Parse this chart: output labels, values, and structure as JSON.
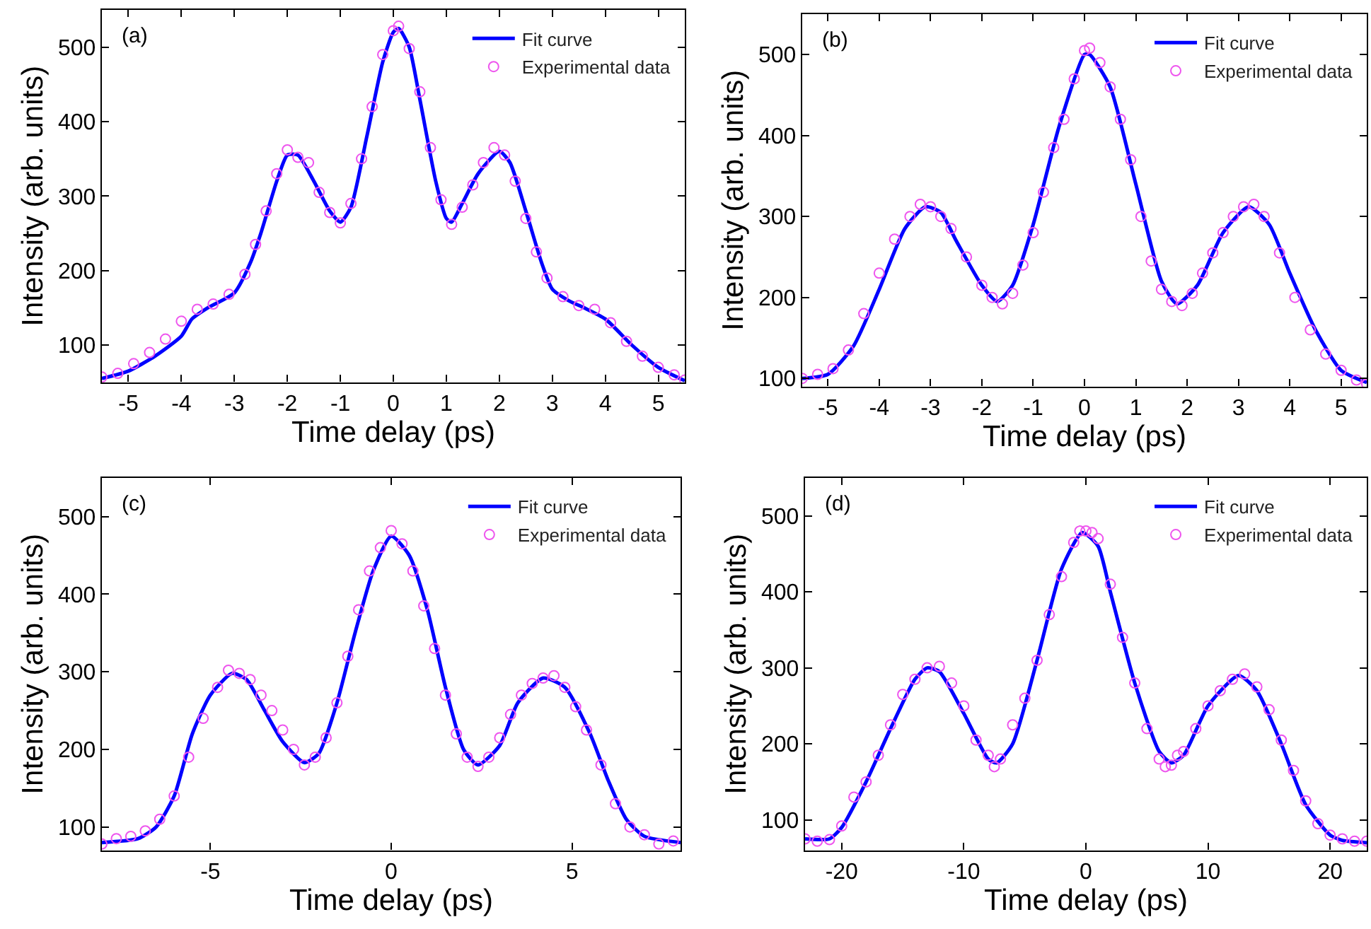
{
  "chart_data": [
    {
      "type": "line",
      "xlabel": "Time delay (ps)",
      "ylabel": "Intensity (arb. units)",
      "annotations": [
        "(a)"
      ],
      "legend": "top right",
      "grid": false,
      "xlim": [
        -5.5,
        5.5
      ],
      "xticks": [
        -5,
        -4,
        -3,
        -2,
        -1,
        0,
        1,
        2,
        3,
        4,
        5
      ],
      "ylim": [
        50,
        550
      ],
      "yticks": [
        100,
        200,
        300,
        400,
        500
      ],
      "series": [
        {
          "name": "Experimental data",
          "type": "scatter",
          "marker": "circle",
          "color": "#ee55ee",
          "x": [
            -5.5,
            -5.2,
            -4.9,
            -4.6,
            -4.3,
            -4.0,
            -3.7,
            -3.4,
            -3.1,
            -2.8,
            -2.6,
            -2.4,
            -2.2,
            -2.0,
            -1.8,
            -1.6,
            -1.4,
            -1.2,
            -1.0,
            -0.8,
            -0.6,
            -0.4,
            -0.2,
            0.0,
            0.1,
            0.3,
            0.5,
            0.7,
            0.9,
            1.1,
            1.3,
            1.5,
            1.7,
            1.9,
            2.1,
            2.3,
            2.5,
            2.7,
            2.9,
            3.2,
            3.5,
            3.8,
            4.1,
            4.4,
            4.7,
            5.0,
            5.3,
            5.5
          ],
          "values": [
            57,
            62,
            75,
            90,
            108,
            132,
            148,
            155,
            168,
            195,
            235,
            280,
            330,
            362,
            352,
            345,
            305,
            278,
            264,
            290,
            350,
            420,
            490,
            522,
            528,
            498,
            440,
            365,
            295,
            262,
            285,
            315,
            345,
            365,
            355,
            320,
            270,
            225,
            190,
            165,
            153,
            148,
            130,
            105,
            85,
            70,
            60,
            53
          ]
        },
        {
          "name": "Fit curve",
          "marker": "none",
          "line_style": "solid",
          "color": "#0000ff",
          "x": [
            -5.5,
            -5.0,
            -4.5,
            -4.0,
            -3.8,
            -3.5,
            -3.0,
            -2.7,
            -2.5,
            -2.2,
            -2.0,
            -1.8,
            -1.5,
            -1.2,
            -1.0,
            -0.8,
            -0.5,
            -0.2,
            0.0,
            0.1,
            0.3,
            0.5,
            0.8,
            1.0,
            1.1,
            1.3,
            1.6,
            2.0,
            2.2,
            2.5,
            2.8,
            3.0,
            3.3,
            3.6,
            4.0,
            4.5,
            5.0,
            5.5
          ],
          "values": [
            55,
            65,
            85,
            112,
            135,
            150,
            170,
            210,
            250,
            320,
            355,
            355,
            320,
            280,
            265,
            285,
            380,
            480,
            520,
            525,
            500,
            430,
            320,
            270,
            265,
            290,
            330,
            360,
            345,
            280,
            210,
            175,
            160,
            150,
            135,
            100,
            70,
            52
          ]
        }
      ]
    },
    {
      "type": "line",
      "xlabel": "Time delay (ps)",
      "ylabel": "Intensity (arb. units)",
      "annotations": [
        "(b)"
      ],
      "legend": "top right",
      "grid": false,
      "xlim": [
        -5.5,
        5.5
      ],
      "xticks": [
        -5,
        -4,
        -3,
        -2,
        -1,
        0,
        1,
        2,
        3,
        4,
        5
      ],
      "ylim": [
        90,
        550
      ],
      "yticks": [
        100,
        200,
        300,
        400,
        500
      ],
      "series": [
        {
          "name": "Experimental data",
          "type": "scatter",
          "marker": "circle",
          "color": "#ee55ee",
          "x": [
            -5.5,
            -5.2,
            -4.9,
            -4.6,
            -4.3,
            -4.0,
            -3.7,
            -3.4,
            -3.2,
            -3.0,
            -2.8,
            -2.6,
            -2.3,
            -2.0,
            -1.8,
            -1.6,
            -1.4,
            -1.2,
            -1.0,
            -0.8,
            -0.6,
            -0.4,
            -0.2,
            0.0,
            0.1,
            0.3,
            0.5,
            0.7,
            0.9,
            1.1,
            1.3,
            1.5,
            1.7,
            1.9,
            2.1,
            2.3,
            2.5,
            2.7,
            2.9,
            3.1,
            3.3,
            3.5,
            3.8,
            4.1,
            4.4,
            4.7,
            5.0,
            5.3,
            5.5
          ],
          "values": [
            100,
            105,
            112,
            135,
            180,
            230,
            272,
            300,
            315,
            312,
            300,
            285,
            250,
            215,
            200,
            192,
            205,
            240,
            280,
            330,
            385,
            420,
            470,
            505,
            508,
            490,
            460,
            420,
            370,
            300,
            245,
            210,
            195,
            190,
            205,
            230,
            255,
            280,
            300,
            312,
            315,
            300,
            255,
            200,
            160,
            130,
            110,
            98,
            93
          ]
        },
        {
          "name": "Fit curve",
          "marker": "none",
          "line_style": "solid",
          "color": "#0000ff",
          "x": [
            -5.5,
            -5.0,
            -4.5,
            -4.0,
            -3.5,
            -3.1,
            -2.8,
            -2.5,
            -2.0,
            -1.7,
            -1.4,
            -1.0,
            -0.5,
            0.0,
            0.1,
            0.5,
            1.0,
            1.5,
            1.8,
            2.2,
            2.7,
            3.2,
            3.6,
            4.0,
            4.5,
            5.0,
            5.5
          ],
          "values": [
            100,
            105,
            140,
            210,
            285,
            312,
            305,
            270,
            215,
            195,
            215,
            290,
            410,
            500,
            500,
            460,
            340,
            220,
            192,
            215,
            280,
            312,
            290,
            230,
            160,
            110,
            95
          ]
        }
      ]
    },
    {
      "type": "line",
      "xlabel": "Time delay (ps)",
      "ylabel": "Intensity (arb. units)",
      "annotations": [
        "(c)"
      ],
      "legend": "top right",
      "grid": false,
      "xlim": [
        -8,
        8
      ],
      "xticks": [
        -5,
        0,
        5
      ],
      "ylim": [
        70,
        550
      ],
      "yticks": [
        100,
        200,
        300,
        400,
        500
      ],
      "series": [
        {
          "name": "Experimental data",
          "type": "scatter",
          "marker": "circle",
          "color": "#ee55ee",
          "x": [
            -8.0,
            -7.6,
            -7.2,
            -6.8,
            -6.4,
            -6.0,
            -5.6,
            -5.2,
            -4.8,
            -4.5,
            -4.2,
            -3.9,
            -3.6,
            -3.3,
            -3.0,
            -2.7,
            -2.4,
            -2.1,
            -1.8,
            -1.5,
            -1.2,
            -0.9,
            -0.6,
            -0.3,
            0.0,
            0.3,
            0.6,
            0.9,
            1.2,
            1.5,
            1.8,
            2.1,
            2.4,
            2.7,
            3.0,
            3.3,
            3.6,
            3.9,
            4.2,
            4.5,
            4.8,
            5.1,
            5.4,
            5.8,
            6.2,
            6.6,
            7.0,
            7.4,
            7.8
          ],
          "values": [
            78,
            85,
            88,
            95,
            110,
            140,
            190,
            240,
            280,
            302,
            298,
            290,
            270,
            250,
            225,
            200,
            180,
            190,
            215,
            260,
            320,
            380,
            430,
            460,
            482,
            465,
            430,
            385,
            330,
            270,
            220,
            190,
            178,
            190,
            215,
            245,
            270,
            285,
            292,
            295,
            280,
            255,
            225,
            180,
            130,
            100,
            90,
            78,
            82
          ]
        },
        {
          "name": "Fit curve",
          "marker": "none",
          "line_style": "solid",
          "color": "#0000ff",
          "x": [
            -8.0,
            -7.0,
            -6.5,
            -6.0,
            -5.5,
            -5.0,
            -4.4,
            -4.0,
            -3.5,
            -3.0,
            -2.4,
            -2.0,
            -1.5,
            -1.0,
            -0.5,
            0.0,
            0.5,
            1.0,
            1.5,
            2.0,
            2.4,
            3.0,
            3.5,
            4.2,
            4.8,
            5.5,
            6.0,
            6.5,
            7.0,
            8.0
          ],
          "values": [
            80,
            85,
            100,
            140,
            220,
            270,
            298,
            290,
            250,
            210,
            183,
            195,
            260,
            350,
            430,
            475,
            450,
            380,
            280,
            200,
            180,
            205,
            260,
            292,
            280,
            220,
            160,
            110,
            88,
            80
          ]
        }
      ]
    },
    {
      "type": "line",
      "xlabel": "Time delay (ps)",
      "ylabel": "Intensity (arb. units)",
      "annotations": [
        "(d)"
      ],
      "legend": "top right",
      "grid": false,
      "xlim": [
        -23,
        23
      ],
      "xticks": [
        -20,
        -10,
        0,
        10,
        20
      ],
      "ylim": [
        60,
        550
      ],
      "yticks": [
        100,
        200,
        300,
        400,
        500
      ],
      "series": [
        {
          "name": "Experimental data",
          "type": "scatter",
          "marker": "circle",
          "color": "#ee55ee",
          "x": [
            -23,
            -22,
            -21,
            -20,
            -19,
            -18,
            -17,
            -16,
            -15,
            -14,
            -13,
            -12,
            -11,
            -10,
            -9,
            -8,
            -7.5,
            -7,
            -6,
            -5,
            -4,
            -3,
            -2,
            -1,
            -0.5,
            0,
            0.5,
            1,
            2,
            3,
            4,
            5,
            6,
            6.5,
            7,
            7.5,
            8,
            9,
            10,
            11,
            12,
            13,
            14,
            15,
            16,
            17,
            18,
            19,
            20,
            21,
            22,
            23
          ],
          "values": [
            75,
            72,
            74,
            92,
            130,
            150,
            185,
            225,
            265,
            285,
            300,
            302,
            280,
            250,
            205,
            185,
            170,
            180,
            225,
            260,
            310,
            370,
            420,
            465,
            480,
            480,
            478,
            470,
            410,
            340,
            280,
            220,
            180,
            170,
            172,
            185,
            190,
            220,
            250,
            270,
            285,
            292,
            275,
            245,
            205,
            165,
            125,
            95,
            80,
            75,
            72,
            72
          ]
        },
        {
          "name": "Fit curve",
          "marker": "none",
          "line_style": "solid",
          "color": "#0000ff",
          "x": [
            -23,
            -21,
            -20,
            -18,
            -16,
            -14,
            -13,
            -12,
            -10,
            -8,
            -7.3,
            -6,
            -4,
            -2,
            -0.3,
            1,
            2,
            4,
            6,
            7,
            8,
            10,
            12.5,
            14,
            16,
            18,
            20,
            21,
            23
          ],
          "values": [
            75,
            75,
            90,
            150,
            220,
            285,
            300,
            295,
            240,
            180,
            175,
            200,
            310,
            430,
            478,
            460,
            400,
            280,
            190,
            175,
            185,
            250,
            290,
            270,
            200,
            120,
            80,
            73,
            70
          ]
        }
      ]
    }
  ]
}
